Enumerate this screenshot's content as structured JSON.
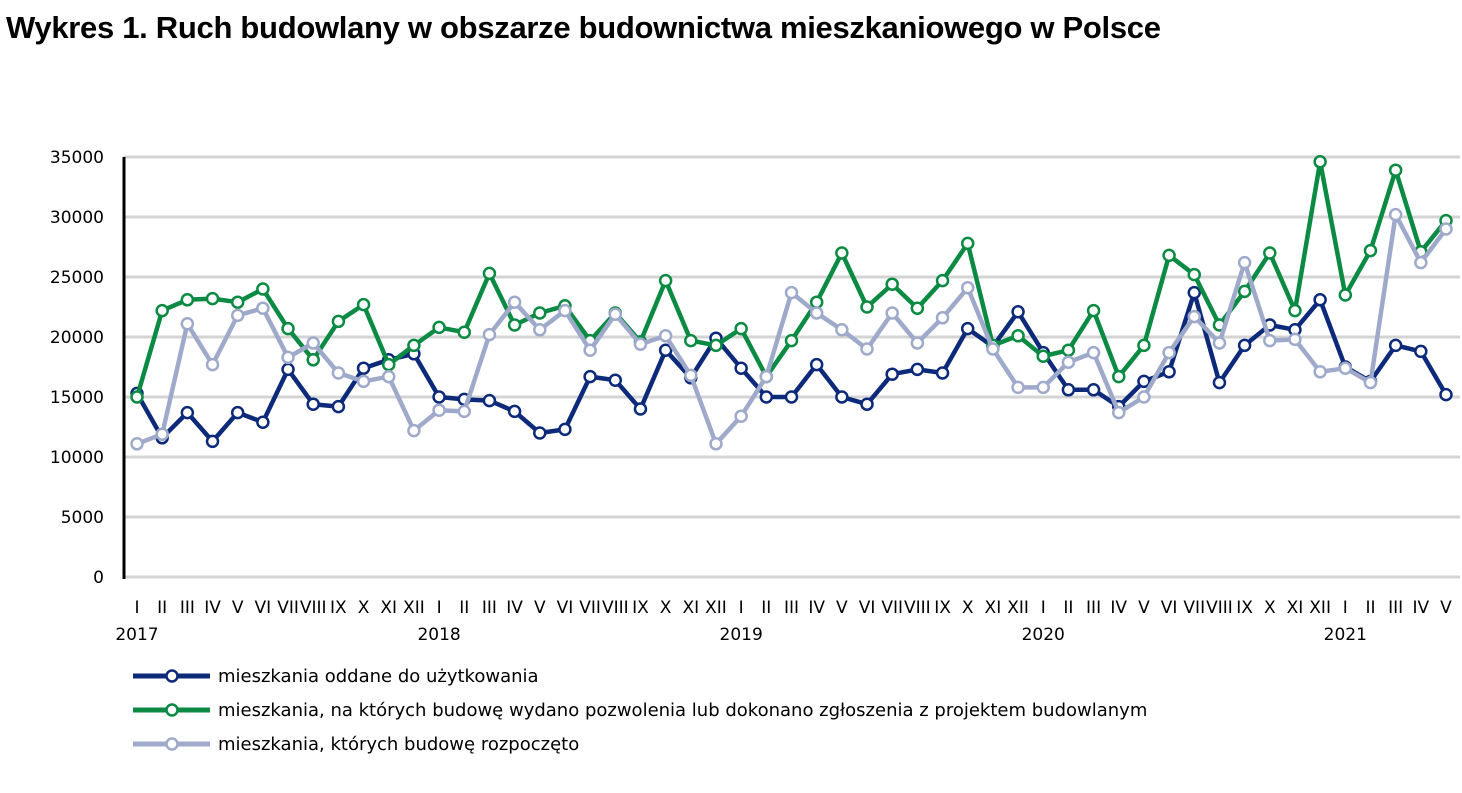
{
  "chart_data": {
    "type": "line",
    "title": "Wykres 1. Ruch budowlany w obszarze budownictwa mieszkaniowego w Polsce",
    "xlabel": "",
    "ylabel": "",
    "ylim": [
      0,
      35000
    ],
    "yticks": [
      "0",
      "5000",
      "10000",
      "15000",
      "20000",
      "25000",
      "30000",
      "35000"
    ],
    "grid": true,
    "legend_position": "bottom",
    "x": [
      "I",
      "II",
      "III",
      "IV",
      "V",
      "VI",
      "VII",
      "VIII",
      "IX",
      "X",
      "XI",
      "XII",
      "I",
      "II",
      "III",
      "IV",
      "V",
      "VI",
      "VII",
      "VIII",
      "IX",
      "X",
      "XI",
      "XII",
      "I",
      "II",
      "III",
      "IV",
      "V",
      "VI",
      "VII",
      "VIII",
      "IX",
      "X",
      "XI",
      "XII",
      "I",
      "II",
      "III",
      "IV",
      "V",
      "VI",
      "VII",
      "VIII",
      "IX",
      "X",
      "XI",
      "XII",
      "I",
      "II",
      "III",
      "IV",
      "V"
    ],
    "years": [
      {
        "label": "2017",
        "index": 0
      },
      {
        "label": "2018",
        "index": 12
      },
      {
        "label": "2019",
        "index": 24
      },
      {
        "label": "2020",
        "index": 36
      },
      {
        "label": "2021",
        "index": 48
      }
    ],
    "series": [
      {
        "name": "mieszkania oddane do użytkowania",
        "color": "#0d2a7a",
        "values": [
          15300,
          11600,
          13700,
          11300,
          13700,
          12900,
          17300,
          14400,
          14200,
          17400,
          18100,
          18600,
          15000,
          14800,
          14700,
          13800,
          12000,
          12300,
          16700,
          16400,
          14000,
          18900,
          16600,
          19900,
          17400,
          15000,
          15000,
          17700,
          15000,
          14400,
          16900,
          17300,
          17000,
          20700,
          19200,
          22100,
          18700,
          15600,
          15600,
          14200,
          16300,
          17100,
          23700,
          16200,
          19300,
          21000,
          20600,
          23100,
          17500,
          16300,
          19300,
          18800,
          15200
        ]
      },
      {
        "name": "mieszkania, na których budowę wydano pozwolenia lub dokonano zgłoszenia z projektem budowlanym",
        "color": "#0a8a42",
        "values": [
          15000,
          22200,
          23100,
          23200,
          22900,
          24000,
          20700,
          18100,
          21300,
          22700,
          17700,
          19300,
          20800,
          20400,
          25300,
          21000,
          22000,
          22600,
          19700,
          22000,
          19600,
          24700,
          19700,
          19300,
          20700,
          16700,
          19700,
          22900,
          27000,
          22500,
          24400,
          22400,
          24700,
          27800,
          19300,
          20100,
          18400,
          18900,
          22200,
          16700,
          19300,
          26800,
          25200,
          21000,
          23800,
          27000,
          22200,
          34600,
          23500,
          27200,
          33900,
          27100,
          29700
        ]
      },
      {
        "name": "mieszkania, których budowę rozpoczęto",
        "color": "#9faacb",
        "values": [
          11100,
          11900,
          21100,
          17700,
          21800,
          22400,
          18300,
          19500,
          17000,
          16300,
          16700,
          12200,
          13900,
          13800,
          20200,
          22900,
          20600,
          22200,
          18900,
          21900,
          19400,
          20100,
          16800,
          11100,
          13400,
          16700,
          23700,
          22000,
          20600,
          19000,
          22000,
          19500,
          21600,
          24100,
          19000,
          15800,
          15800,
          17900,
          18700,
          13700,
          15000,
          18700,
          21700,
          19500,
          26200,
          19700,
          19800,
          17100,
          17400,
          16200,
          30200,
          26200,
          29000
        ]
      }
    ]
  }
}
